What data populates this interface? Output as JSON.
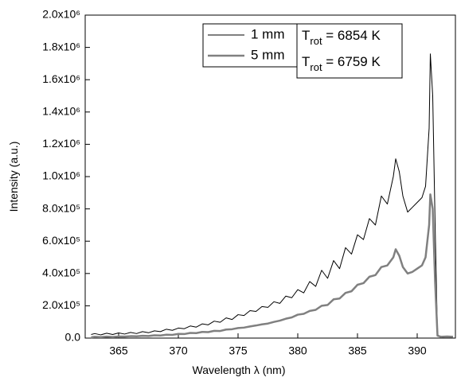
{
  "chart_data": {
    "type": "line",
    "x_label": "Wavelength λ (nm)",
    "y_label": "Intensity (a.u.)",
    "x": [
      362.7,
      363,
      363.5,
      364,
      364.5,
      365,
      365.5,
      366,
      366.5,
      367,
      367.5,
      368,
      368.5,
      369,
      369.5,
      370,
      370.5,
      371,
      371.5,
      372,
      372.5,
      373,
      373.5,
      374,
      374.5,
      375,
      375.5,
      376,
      376.5,
      377,
      377.5,
      378,
      378.5,
      379,
      379.5,
      380,
      380.5,
      381,
      381.5,
      382,
      382.5,
      383,
      383.5,
      384,
      384.5,
      385,
      385.5,
      386,
      386.5,
      387,
      387.5,
      388,
      388.2,
      388.5,
      388.8,
      389.2,
      389.6,
      390,
      390.4,
      390.7,
      391,
      391.1,
      391.3,
      391.5,
      391.7,
      392,
      392.5,
      393
    ],
    "series": [
      {
        "name": "1 mm",
        "color": "#000000",
        "width": 1,
        "values": [
          22000,
          28000,
          20000,
          30000,
          22000,
          32000,
          25000,
          35000,
          28000,
          40000,
          33000,
          45000,
          40000,
          55000,
          48000,
          62000,
          58000,
          75000,
          68000,
          88000,
          82000,
          105000,
          98000,
          125000,
          115000,
          145000,
          140000,
          170000,
          165000,
          195000,
          190000,
          225000,
          215000,
          260000,
          250000,
          300000,
          280000,
          350000,
          320000,
          420000,
          370000,
          480000,
          430000,
          560000,
          520000,
          640000,
          610000,
          740000,
          700000,
          880000,
          830000,
          1000000,
          1110000,
          1030000,
          880000,
          780000,
          810000,
          840000,
          870000,
          940000,
          1300000,
          1760000,
          1500000,
          700000,
          20000,
          8000,
          10000,
          8000
        ]
      },
      {
        "name": "5 mm",
        "color": "#808080",
        "width": 2.5,
        "values": [
          5000,
          8000,
          6000,
          9000,
          7000,
          10000,
          9000,
          12000,
          11000,
          14000,
          13000,
          17000,
          16000,
          21000,
          20000,
          26000,
          25000,
          32000,
          31000,
          38000,
          37000,
          45000,
          44000,
          53000,
          55000,
          62000,
          65000,
          72000,
          78000,
          85000,
          90000,
          100000,
          108000,
          120000,
          128000,
          145000,
          150000,
          168000,
          175000,
          200000,
          205000,
          240000,
          245000,
          280000,
          290000,
          330000,
          340000,
          380000,
          390000,
          440000,
          450000,
          500000,
          550000,
          510000,
          440000,
          400000,
          410000,
          430000,
          450000,
          500000,
          700000,
          890000,
          800000,
          350000,
          15000,
          8000,
          10000,
          8000
        ]
      }
    ],
    "annotations": [
      {
        "symbol": "T",
        "subscript": "rot",
        "text": " = 6854 K"
      },
      {
        "symbol": "T",
        "subscript": "rot",
        "text": " = 6759 K"
      }
    ],
    "xlim": [
      362.2,
      393.2
    ],
    "xticks": [
      365,
      370,
      375,
      380,
      385,
      390
    ],
    "ylim": [
      0,
      2000000
    ],
    "yticks": [
      {
        "value": 0,
        "label": "0.0"
      },
      {
        "value": 200000,
        "label": "2.0x10⁵"
      },
      {
        "value": 400000,
        "label": "4.0x10⁵"
      },
      {
        "value": 600000,
        "label": "6.0x10⁵"
      },
      {
        "value": 800000,
        "label": "8.0x10⁵"
      },
      {
        "value": 1000000,
        "label": "1.0x10⁶"
      },
      {
        "value": 1200000,
        "label": "1.2x10⁶"
      },
      {
        "value": 1400000,
        "label": "1.4x10⁶"
      },
      {
        "value": 1600000,
        "label": "1.6x10⁶"
      },
      {
        "value": 1800000,
        "label": "1.8x10⁶"
      },
      {
        "value": 2000000,
        "label": "2.0x10⁶"
      }
    ],
    "grid": false,
    "legend": "top"
  }
}
